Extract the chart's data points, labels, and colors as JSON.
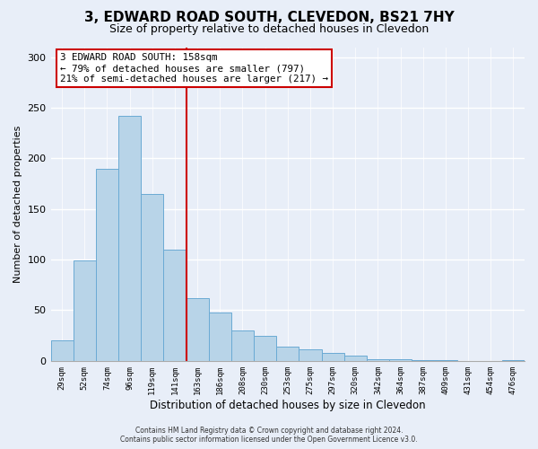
{
  "title": "3, EDWARD ROAD SOUTH, CLEVEDON, BS21 7HY",
  "subtitle": "Size of property relative to detached houses in Clevedon",
  "xlabel": "Distribution of detached houses by size in Clevedon",
  "ylabel": "Number of detached properties",
  "bar_labels": [
    "29sqm",
    "52sqm",
    "74sqm",
    "96sqm",
    "119sqm",
    "141sqm",
    "163sqm",
    "186sqm",
    "208sqm",
    "230sqm",
    "253sqm",
    "275sqm",
    "297sqm",
    "320sqm",
    "342sqm",
    "364sqm",
    "387sqm",
    "409sqm",
    "431sqm",
    "454sqm",
    "476sqm"
  ],
  "bar_values": [
    20,
    99,
    190,
    242,
    165,
    110,
    62,
    48,
    30,
    25,
    14,
    11,
    8,
    5,
    2,
    2,
    1,
    1,
    0,
    0,
    1
  ],
  "bar_color": "#b8d4e8",
  "bar_edge_color": "#6aaad4",
  "vline_x": 6.0,
  "vline_color": "#cc0000",
  "annotation_text": "3 EDWARD ROAD SOUTH: 158sqm\n← 79% of detached houses are smaller (797)\n21% of semi-detached houses are larger (217) →",
  "annotation_box_color": "#ffffff",
  "annotation_box_edge": "#cc0000",
  "ylim": [
    0,
    310
  ],
  "footer1": "Contains HM Land Registry data © Crown copyright and database right 2024.",
  "footer2": "Contains public sector information licensed under the Open Government Licence v3.0.",
  "title_fontsize": 11,
  "subtitle_fontsize": 9,
  "bg_color": "#e8eef8",
  "grid_color": "#ffffff",
  "font_family": "DejaVu Sans"
}
